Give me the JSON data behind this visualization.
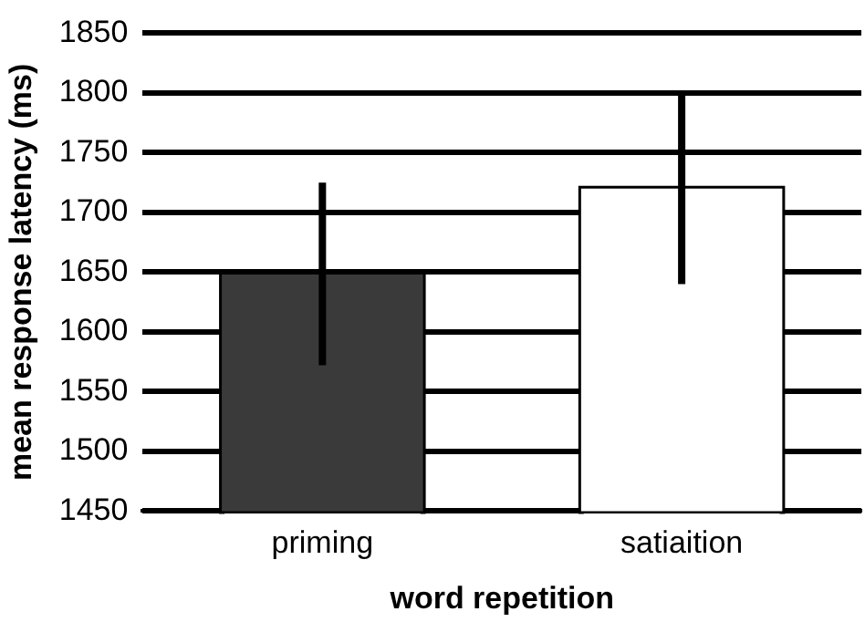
{
  "chart_data": {
    "type": "bar",
    "xlabel": "word repetition",
    "ylabel": "mean response latency (ms)",
    "categories": [
      "priming",
      "satiaition"
    ],
    "values": [
      1648,
      1720
    ],
    "colors": [
      "#3a3a3a",
      "#ffffff"
    ],
    "errors": [
      [
        1572,
        1725
      ],
      [
        1640,
        1800
      ]
    ],
    "ylim": [
      1450,
      1850
    ],
    "yticks": [
      1450,
      1500,
      1550,
      1600,
      1650,
      1700,
      1750,
      1800,
      1850
    ],
    "grid": "y",
    "legend": false
  }
}
